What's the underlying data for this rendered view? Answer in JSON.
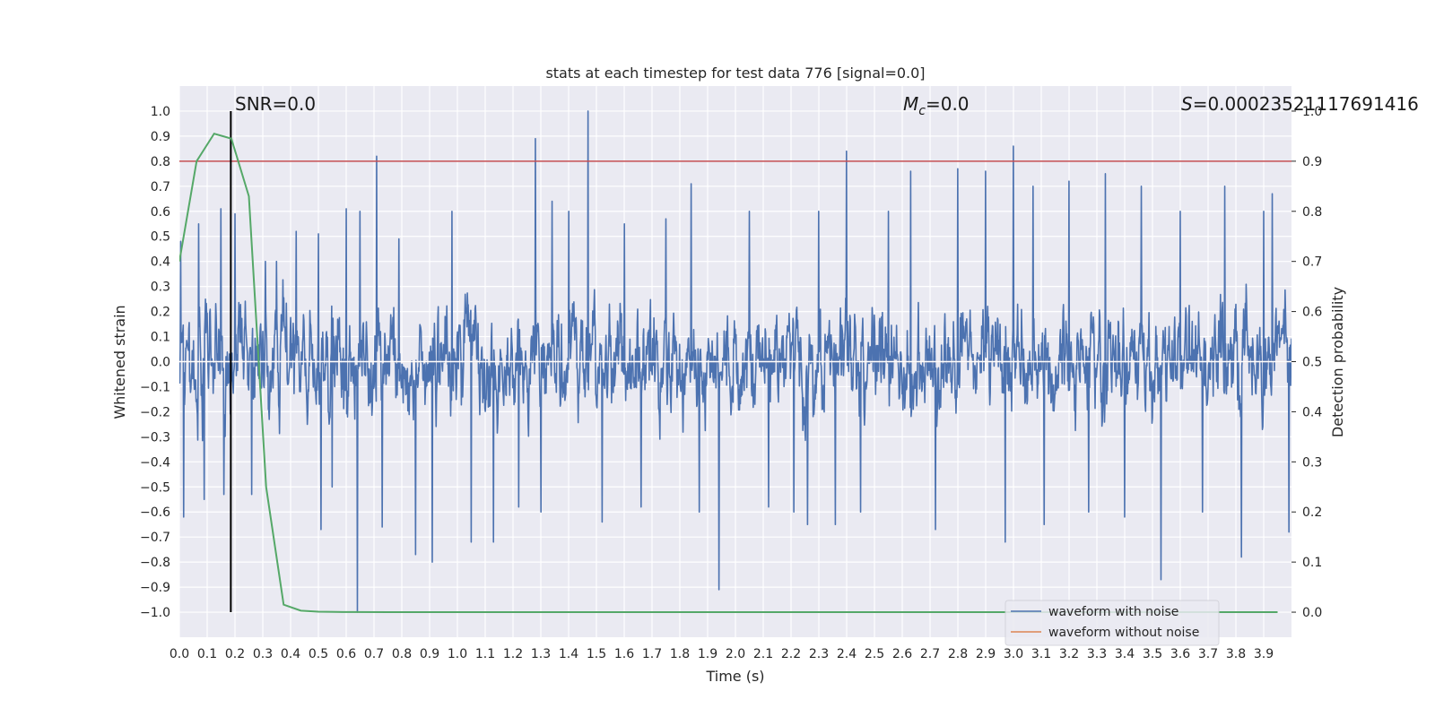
{
  "chart_data": {
    "type": "line",
    "title": "stats at each timestep for test data 776 [signal=0.0]",
    "xlabel": "Time (s)",
    "ylabel": "Whitened strain",
    "y2label": "Detection probability",
    "xlim": [
      0.0,
      4.0
    ],
    "ylim": [
      -1.1,
      1.1
    ],
    "y2lim": [
      -0.05,
      1.0
    ],
    "x_ticks": [
      "0.0",
      "0.1",
      "0.2",
      "0.3",
      "0.4",
      "0.5",
      "0.6",
      "0.7",
      "0.8",
      "0.9",
      "1.0",
      "1.1",
      "1.2",
      "1.3",
      "1.4",
      "1.5",
      "1.6",
      "1.7",
      "1.8",
      "1.9",
      "2.0",
      "2.1",
      "2.2",
      "2.3",
      "2.4",
      "2.5",
      "2.6",
      "2.7",
      "2.8",
      "2.9",
      "3.0",
      "3.1",
      "3.2",
      "3.3",
      "3.4",
      "3.5",
      "3.6",
      "3.7",
      "3.8",
      "3.9"
    ],
    "y_ticks": [
      "1.0",
      "0.9",
      "0.8",
      "0.7",
      "0.6",
      "0.5",
      "0.4",
      "0.3",
      "0.2",
      "0.1",
      "0.0",
      "−0.1",
      "−0.2",
      "−0.3",
      "−0.4",
      "−0.5",
      "−0.6",
      "−0.7",
      "−0.8",
      "−0.9",
      "−1.0"
    ],
    "y2_ticks": [
      "1.0",
      "0.9",
      "0.8",
      "0.7",
      "0.6",
      "0.5",
      "0.4",
      "0.3",
      "0.2",
      "0.1",
      "0.0"
    ],
    "grid": true,
    "legend": {
      "placement": "lower-right",
      "entries": [
        {
          "label": "waveform with noise",
          "color": "#4c72b0"
        },
        {
          "label": "waveform without noise",
          "color": "#dd8452"
        }
      ]
    },
    "annotations": {
      "snr": "SNR=0.0",
      "mc_symbol": "M",
      "mc_sub": "c",
      "mc_value": "=0.0",
      "s_symbol": "S",
      "s_value": "=0.00023521117691416",
      "vline_x": 0.185,
      "threshold_y2": 0.9
    },
    "colors": {
      "noise": "#4c72b0",
      "clean": "#dd8452",
      "probability": "#55a868",
      "threshold": "#c44e52",
      "marker": "#000000",
      "axes_bg": "#eaeaf2",
      "grid": "#ffffff"
    },
    "series": [
      {
        "name": "waveform with noise",
        "noise_peaks": [
          {
            "x": 0.005,
            "y": 0.48
          },
          {
            "x": 0.015,
            "y": -0.62
          },
          {
            "x": 0.07,
            "y": 0.55
          },
          {
            "x": 0.09,
            "y": -0.55
          },
          {
            "x": 0.15,
            "y": 0.61
          },
          {
            "x": 0.16,
            "y": -0.53
          },
          {
            "x": 0.2,
            "y": 0.59
          },
          {
            "x": 0.26,
            "y": -0.53
          },
          {
            "x": 0.31,
            "y": 0.4
          },
          {
            "x": 0.35,
            "y": 0.4
          },
          {
            "x": 0.42,
            "y": 0.52
          },
          {
            "x": 0.5,
            "y": 0.51
          },
          {
            "x": 0.51,
            "y": -0.67
          },
          {
            "x": 0.55,
            "y": -0.5
          },
          {
            "x": 0.6,
            "y": 0.61
          },
          {
            "x": 0.64,
            "y": -1.0
          },
          {
            "x": 0.65,
            "y": 0.6
          },
          {
            "x": 0.71,
            "y": 0.82
          },
          {
            "x": 0.73,
            "y": -0.66
          },
          {
            "x": 0.79,
            "y": 0.49
          },
          {
            "x": 0.85,
            "y": -0.77
          },
          {
            "x": 0.91,
            "y": -0.8
          },
          {
            "x": 0.98,
            "y": 0.6
          },
          {
            "x": 1.05,
            "y": -0.72
          },
          {
            "x": 1.13,
            "y": -0.72
          },
          {
            "x": 1.22,
            "y": -0.58
          },
          {
            "x": 1.28,
            "y": 0.89
          },
          {
            "x": 1.3,
            "y": -0.6
          },
          {
            "x": 1.34,
            "y": 0.64
          },
          {
            "x": 1.4,
            "y": 0.6
          },
          {
            "x": 1.47,
            "y": 1.0
          },
          {
            "x": 1.52,
            "y": -0.64
          },
          {
            "x": 1.6,
            "y": 0.55
          },
          {
            "x": 1.66,
            "y": -0.58
          },
          {
            "x": 1.75,
            "y": 0.57
          },
          {
            "x": 1.84,
            "y": 0.71
          },
          {
            "x": 1.87,
            "y": -0.6
          },
          {
            "x": 1.94,
            "y": -0.91
          },
          {
            "x": 2.05,
            "y": 0.6
          },
          {
            "x": 2.12,
            "y": -0.58
          },
          {
            "x": 2.21,
            "y": -0.6
          },
          {
            "x": 2.26,
            "y": -0.65
          },
          {
            "x": 2.3,
            "y": 0.6
          },
          {
            "x": 2.36,
            "y": -0.65
          },
          {
            "x": 2.4,
            "y": 0.84
          },
          {
            "x": 2.45,
            "y": -0.6
          },
          {
            "x": 2.55,
            "y": 0.6
          },
          {
            "x": 2.63,
            "y": 0.76
          },
          {
            "x": 2.72,
            "y": -0.67
          },
          {
            "x": 2.8,
            "y": 0.77
          },
          {
            "x": 2.9,
            "y": 0.76
          },
          {
            "x": 2.97,
            "y": -0.72
          },
          {
            "x": 3.0,
            "y": 0.86
          },
          {
            "x": 3.07,
            "y": 0.7
          },
          {
            "x": 3.11,
            "y": -0.65
          },
          {
            "x": 3.2,
            "y": 0.72
          },
          {
            "x": 3.27,
            "y": -0.6
          },
          {
            "x": 3.33,
            "y": 0.75
          },
          {
            "x": 3.4,
            "y": -0.62
          },
          {
            "x": 3.46,
            "y": 0.7
          },
          {
            "x": 3.53,
            "y": -0.87
          },
          {
            "x": 3.6,
            "y": 0.6
          },
          {
            "x": 3.68,
            "y": -0.6
          },
          {
            "x": 3.76,
            "y": 0.7
          },
          {
            "x": 3.82,
            "y": -0.78
          },
          {
            "x": 3.9,
            "y": 0.6
          },
          {
            "x": 3.93,
            "y": 0.67
          },
          {
            "x": 3.99,
            "y": -0.68
          }
        ]
      },
      {
        "name": "waveform without noise",
        "x": [
          0.0,
          4.0
        ],
        "y": [
          0.0,
          0.0
        ]
      },
      {
        "name": "detection probability",
        "x": [
          0.0,
          0.062,
          0.125,
          0.187,
          0.25,
          0.312,
          0.375,
          0.437,
          0.5,
          0.562,
          0.625,
          0.75,
          1.0,
          1.5,
          2.0,
          2.5,
          3.0,
          3.5,
          3.95
        ],
        "y": [
          0.7,
          0.9,
          0.955,
          0.945,
          0.83,
          0.25,
          0.015,
          0.003,
          0.001,
          0.0005,
          0.0002,
          0.0001,
          0.0001,
          0.0001,
          0.0001,
          0.0001,
          0.0001,
          0.0001,
          0.0001
        ]
      }
    ]
  }
}
